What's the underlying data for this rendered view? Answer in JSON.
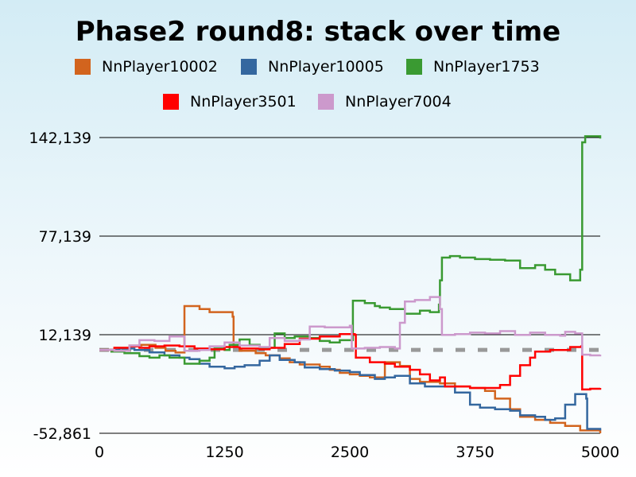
{
  "chart_data": {
    "type": "line",
    "title": "Phase2 round8: stack over time",
    "xlabel": "",
    "ylabel": "",
    "xlim": [
      0,
      5000
    ],
    "ylim": [
      -52861,
      142139
    ],
    "xticks": [
      0,
      1250,
      2500,
      3750,
      5000
    ],
    "xtick_labels": [
      "0",
      "1250",
      "2500",
      "3750",
      "5000"
    ],
    "yticks": [
      -52861,
      12139,
      77139,
      142139
    ],
    "ytick_labels": [
      "-52,861",
      "12,139",
      "77,139",
      "142,139"
    ],
    "grid": "horizontal lines at y ticks",
    "legend_placement": "top, below title",
    "reference_line": {
      "y": 2139,
      "style": "dashed",
      "color": "#999999"
    },
    "series": [
      {
        "name": "NnPlayer10002",
        "color": "#d2641e",
        "points": [
          [
            0,
            2139
          ],
          [
            150,
            3500
          ],
          [
            300,
            5000
          ],
          [
            420,
            5500
          ],
          [
            560,
            3500
          ],
          [
            660,
            1500
          ],
          [
            760,
            400
          ],
          [
            850,
            2000
          ],
          [
            849,
            31000
          ],
          [
            1000,
            29000
          ],
          [
            1100,
            27000
          ],
          [
            1330,
            24000
          ],
          [
            1340,
            5000
          ],
          [
            1400,
            1500
          ],
          [
            1560,
            0
          ],
          [
            1660,
            -1500
          ],
          [
            1800,
            -3500
          ],
          [
            1900,
            -6000
          ],
          [
            2000,
            -7500
          ],
          [
            2200,
            -9000
          ],
          [
            2300,
            -11000
          ],
          [
            2400,
            -13000
          ],
          [
            2500,
            -14000
          ],
          [
            2600,
            -15000
          ],
          [
            2700,
            -16000
          ],
          [
            2850,
            -6000
          ],
          [
            3000,
            -8500
          ],
          [
            3100,
            -17000
          ],
          [
            3200,
            -19000
          ],
          [
            3400,
            -20000
          ],
          [
            3550,
            -22000
          ],
          [
            3700,
            -23000
          ],
          [
            3850,
            -25000
          ],
          [
            3950,
            -30000
          ],
          [
            4100,
            -37000
          ],
          [
            4200,
            -42000
          ],
          [
            4350,
            -44000
          ],
          [
            4500,
            -46000
          ],
          [
            4650,
            -48000
          ],
          [
            4800,
            -51000
          ],
          [
            5000,
            -52861
          ]
        ]
      },
      {
        "name": "NnPlayer10005",
        "color": "#34679f",
        "points": [
          [
            0,
            2139
          ],
          [
            200,
            3000
          ],
          [
            350,
            2000
          ],
          [
            500,
            500
          ],
          [
            650,
            -1500
          ],
          [
            800,
            -3000
          ],
          [
            900,
            -4000
          ],
          [
            1000,
            -7000
          ],
          [
            1100,
            -9000
          ],
          [
            1250,
            -10000
          ],
          [
            1350,
            -9000
          ],
          [
            1450,
            -8000
          ],
          [
            1600,
            -5000
          ],
          [
            1700,
            -1500
          ],
          [
            1800,
            -4500
          ],
          [
            1950,
            -6000
          ],
          [
            2050,
            -9500
          ],
          [
            2200,
            -10500
          ],
          [
            2350,
            -11500
          ],
          [
            2500,
            -12500
          ],
          [
            2600,
            -14500
          ],
          [
            2750,
            -17000
          ],
          [
            2850,
            -16000
          ],
          [
            2950,
            -15000
          ],
          [
            3100,
            -20000
          ],
          [
            3250,
            -22000
          ],
          [
            3400,
            -22000
          ],
          [
            3550,
            -26000
          ],
          [
            3700,
            -34000
          ],
          [
            3800,
            -36000
          ],
          [
            3950,
            -37000
          ],
          [
            4100,
            -38000
          ],
          [
            4200,
            -41000
          ],
          [
            4350,
            -42000
          ],
          [
            4450,
            -44000
          ],
          [
            4550,
            -43000
          ],
          [
            4650,
            -34000
          ],
          [
            4750,
            -27000
          ],
          [
            4860,
            -30000
          ],
          [
            4870,
            -50000
          ],
          [
            5000,
            -51000
          ]
        ]
      },
      {
        "name": "NnPlayer1753",
        "color": "#3a9a32",
        "points": [
          [
            0,
            2139
          ],
          [
            120,
            1000
          ],
          [
            250,
            0
          ],
          [
            400,
            -2000
          ],
          [
            500,
            -3000
          ],
          [
            600,
            -1500
          ],
          [
            700,
            -3000
          ],
          [
            850,
            -7000
          ],
          [
            1000,
            -5000
          ],
          [
            1100,
            -3000
          ],
          [
            1150,
            3000
          ],
          [
            1250,
            2000
          ],
          [
            1300,
            5500
          ],
          [
            1400,
            9000
          ],
          [
            1500,
            5500
          ],
          [
            1600,
            3500
          ],
          [
            1650,
            3500
          ],
          [
            1750,
            13000
          ],
          [
            1850,
            10000
          ],
          [
            1950,
            11000
          ],
          [
            2100,
            10000
          ],
          [
            2200,
            8000
          ],
          [
            2300,
            7000
          ],
          [
            2400,
            8500
          ],
          [
            2530,
            9000
          ],
          [
            2531,
            34500
          ],
          [
            2650,
            33000
          ],
          [
            2750,
            31000
          ],
          [
            2800,
            30000
          ],
          [
            2900,
            29000
          ],
          [
            3050,
            26000
          ],
          [
            3200,
            28000
          ],
          [
            3300,
            27000
          ],
          [
            3390,
            32000
          ],
          [
            3400,
            48000
          ],
          [
            3420,
            63000
          ],
          [
            3500,
            64000
          ],
          [
            3600,
            63000
          ],
          [
            3750,
            62000
          ],
          [
            3900,
            61500
          ],
          [
            4050,
            61000
          ],
          [
            4200,
            56000
          ],
          [
            4350,
            58000
          ],
          [
            4450,
            55000
          ],
          [
            4550,
            52000
          ],
          [
            4650,
            52000
          ],
          [
            4700,
            48000
          ],
          [
            4800,
            55000
          ],
          [
            4820,
            139000
          ],
          [
            4850,
            143000
          ],
          [
            5000,
            141500
          ]
        ]
      },
      {
        "name": "NnPlayer3501",
        "color": "#ff0000",
        "points": [
          [
            0,
            2139
          ],
          [
            150,
            3500
          ],
          [
            300,
            4500
          ],
          [
            400,
            3500
          ],
          [
            500,
            4500
          ],
          [
            650,
            5000
          ],
          [
            800,
            4500
          ],
          [
            950,
            3000
          ],
          [
            1100,
            2500
          ],
          [
            1250,
            4000
          ],
          [
            1400,
            3000
          ],
          [
            1600,
            2500
          ],
          [
            1700,
            3500
          ],
          [
            1850,
            6000
          ],
          [
            2000,
            9500
          ],
          [
            2200,
            11000
          ],
          [
            2400,
            12500
          ],
          [
            2550,
            12000
          ],
          [
            2560,
            -3000
          ],
          [
            2700,
            -6000
          ],
          [
            2850,
            -7000
          ],
          [
            2950,
            -9000
          ],
          [
            3100,
            -11000
          ],
          [
            3200,
            -14000
          ],
          [
            3300,
            -18000
          ],
          [
            3400,
            -16000
          ],
          [
            3450,
            -22000
          ],
          [
            3600,
            -22000
          ],
          [
            3700,
            -23000
          ],
          [
            3850,
            -23000
          ],
          [
            4000,
            -21000
          ],
          [
            4100,
            -15000
          ],
          [
            4200,
            -8000
          ],
          [
            4300,
            -3000
          ],
          [
            4350,
            1000
          ],
          [
            4500,
            2000
          ],
          [
            4700,
            4000
          ],
          [
            4810,
            4500
          ],
          [
            4820,
            -24000
          ],
          [
            4900,
            -23500
          ],
          [
            5000,
            -23000
          ]
        ]
      },
      {
        "name": "NnPlayer7004",
        "color": "#cc99cc",
        "points": [
          [
            0,
            2139
          ],
          [
            150,
            1500
          ],
          [
            300,
            5000
          ],
          [
            400,
            8500
          ],
          [
            550,
            8000
          ],
          [
            700,
            11000
          ],
          [
            850,
            1500
          ],
          [
            1000,
            2000
          ],
          [
            1100,
            4500
          ],
          [
            1250,
            7000
          ],
          [
            1400,
            5000
          ],
          [
            1600,
            4000
          ],
          [
            1700,
            10000
          ],
          [
            1850,
            8000
          ],
          [
            2000,
            9000
          ],
          [
            2100,
            17500
          ],
          [
            2250,
            17000
          ],
          [
            2500,
            18000
          ],
          [
            2520,
            3000
          ],
          [
            2650,
            3500
          ],
          [
            2800,
            4000
          ],
          [
            2950,
            3000
          ],
          [
            3000,
            20000
          ],
          [
            3050,
            34000
          ],
          [
            3150,
            35000
          ],
          [
            3300,
            37000
          ],
          [
            3400,
            29000
          ],
          [
            3420,
            12000
          ],
          [
            3550,
            12500
          ],
          [
            3700,
            13500
          ],
          [
            3850,
            13000
          ],
          [
            4000,
            14500
          ],
          [
            4150,
            12000
          ],
          [
            4300,
            13500
          ],
          [
            4450,
            12000
          ],
          [
            4600,
            11500
          ],
          [
            4650,
            14000
          ],
          [
            4750,
            13000
          ],
          [
            4820,
            -1000
          ],
          [
            4900,
            -1500
          ],
          [
            5000,
            -1000
          ]
        ]
      }
    ]
  }
}
